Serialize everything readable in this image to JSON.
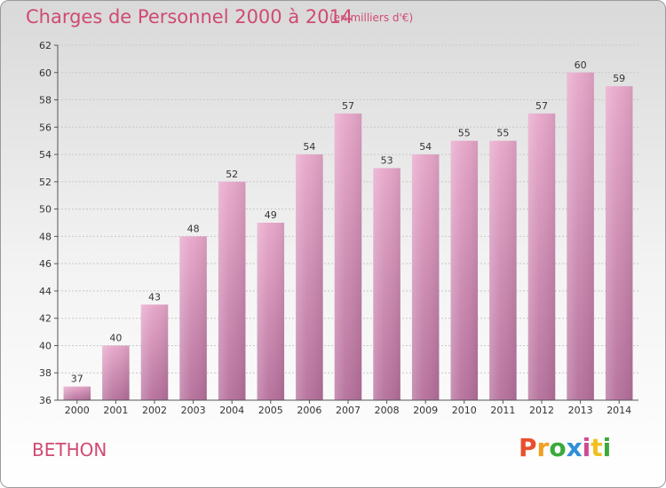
{
  "header": {
    "title": "Charges de Personnel 2000 à 2014",
    "subtitle": "(en milliers d'€)"
  },
  "footer": {
    "city": "BETHON",
    "logo": [
      "P",
      "r",
      "o",
      "x",
      "i",
      "t",
      "i"
    ],
    "logo_colors": [
      "#e8502c",
      "#f0a020",
      "#3aaa3a",
      "#2f8fd8",
      "#d04a90",
      "#f0c020",
      "#3aaa3a"
    ]
  },
  "chart_data": {
    "type": "bar",
    "title": "Charges de Personnel 2000 à 2014",
    "subtitle": "(en milliers d'€)",
    "categories": [
      "2000",
      "2001",
      "2002",
      "2003",
      "2004",
      "2005",
      "2006",
      "2007",
      "2008",
      "2009",
      "2010",
      "2011",
      "2012",
      "2013",
      "2014"
    ],
    "values": [
      37,
      40,
      43,
      48,
      52,
      49,
      54,
      57,
      53,
      54,
      55,
      55,
      57,
      60,
      59
    ],
    "ylim": [
      36,
      62
    ],
    "yticks": [
      36,
      38,
      40,
      42,
      44,
      46,
      48,
      50,
      52,
      54,
      56,
      58,
      60,
      62
    ],
    "grid": true,
    "bar_color_top": "#e7a6c9",
    "bar_color_bottom": "#b56f9b"
  }
}
